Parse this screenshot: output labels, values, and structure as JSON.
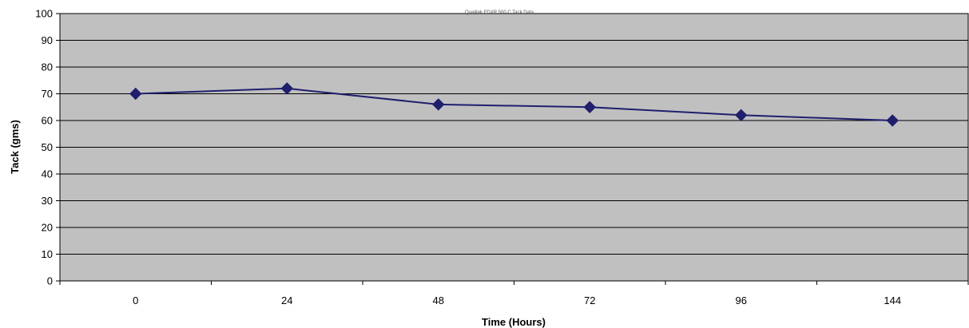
{
  "chart_data": {
    "type": "line",
    "xlabel": "Time (Hours)",
    "ylabel": "Tack (gms)",
    "categories": [
      "0",
      "24",
      "48",
      "72",
      "96",
      "144"
    ],
    "series": [
      {
        "values": [
          70,
          72,
          66,
          65,
          62,
          60
        ],
        "color": "#1f1f6e",
        "marker": "diamond"
      }
    ],
    "ylim": [
      0,
      100
    ],
    "yticks": [
      0,
      10,
      20,
      30,
      40,
      50,
      60,
      70,
      80,
      90,
      100
    ],
    "grid": "horizontal",
    "legend": "none",
    "plot_background": "#c0c0c0",
    "watermark_text": "Qualitek FDXR 500 C Tack Data"
  }
}
